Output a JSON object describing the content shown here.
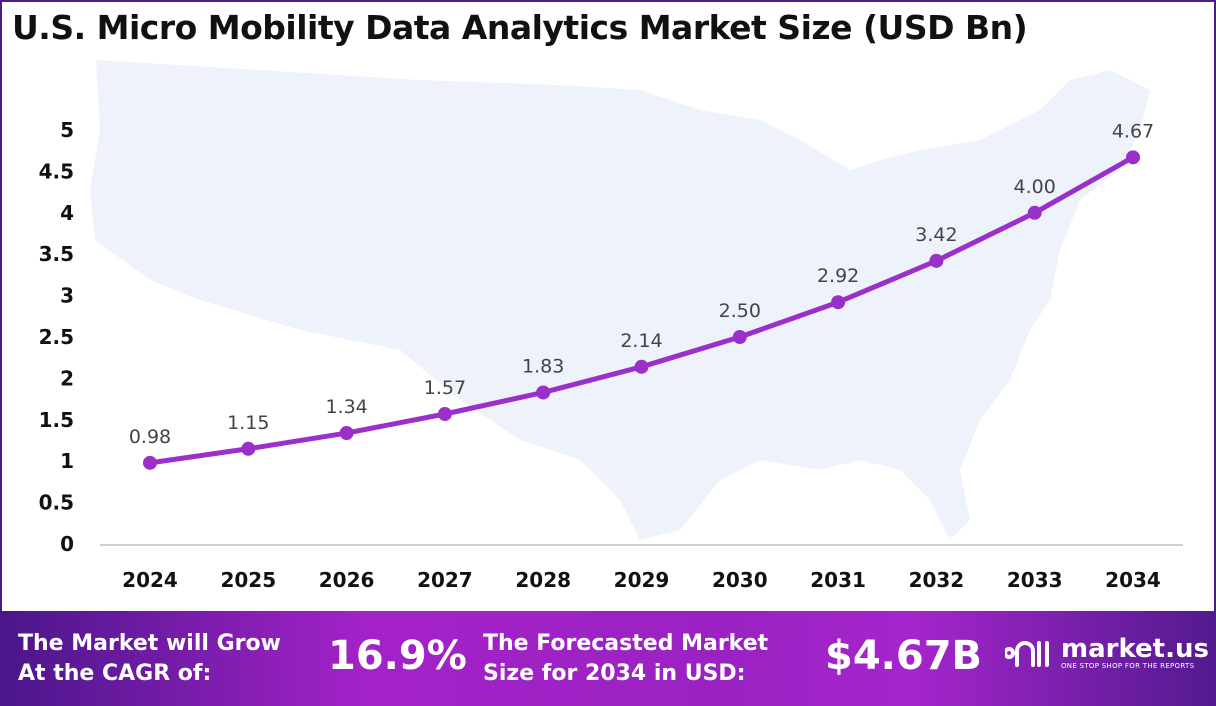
{
  "chart_data": {
    "type": "line",
    "title": "U.S. Micro Mobility Data Analytics Market Size (USD Bn)",
    "xlabel": "",
    "ylabel": "",
    "categories": [
      "2024",
      "2025",
      "2026",
      "2027",
      "2028",
      "2029",
      "2030",
      "2031",
      "2032",
      "2033",
      "2034"
    ],
    "values": [
      0.98,
      1.15,
      1.34,
      1.57,
      1.83,
      2.14,
      2.5,
      2.92,
      3.42,
      4.0,
      4.67
    ],
    "data_labels": [
      "0.98",
      "1.15",
      "1.34",
      "1.57",
      "1.83",
      "2.14",
      "2.50",
      "2.92",
      "3.42",
      "4.00",
      "4.67"
    ],
    "ylim": [
      0,
      5
    ],
    "yticks": [
      "0",
      "0.5",
      "1",
      "1.5",
      "2",
      "2.5",
      "3",
      "3.5",
      "4",
      "4.5",
      "5"
    ],
    "grid": false,
    "line_color": "#9b2fc9"
  },
  "footer": {
    "cagr_label_1": "The Market will Grow",
    "cagr_label_2": "At the CAGR of:",
    "cagr_value": "16.9%",
    "forecast_label_1": "The Forecasted Market",
    "forecast_label_2": "Size for 2034 in USD:",
    "forecast_value": "$4.67B",
    "brand_name": "market.us",
    "brand_tagline": "ONE STOP SHOP FOR THE REPORTS"
  }
}
